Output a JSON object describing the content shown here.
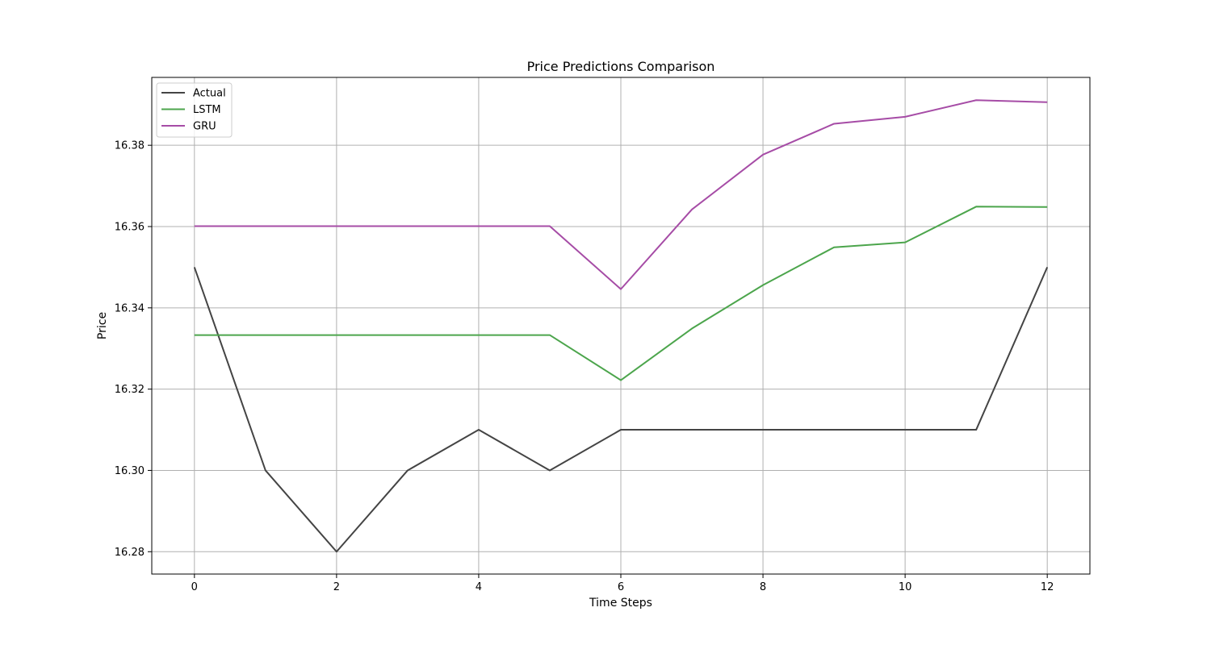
{
  "chart_data": {
    "type": "line",
    "title": "Price Predictions Comparison",
    "xlabel": "Time Steps",
    "ylabel": "Price",
    "x": [
      0,
      1,
      2,
      3,
      4,
      5,
      6,
      7,
      8,
      9,
      10,
      11,
      12
    ],
    "xlim": [
      -0.6,
      12.6
    ],
    "ylim": [
      16.2745,
      16.3967
    ],
    "xticks": [
      "0",
      "2",
      "4",
      "6",
      "8",
      "10",
      "12"
    ],
    "yticks": [
      "16.28",
      "16.30",
      "16.32",
      "16.34",
      "16.36",
      "16.38"
    ],
    "grid": true,
    "legend_position": "top-left",
    "series": [
      {
        "name": "Actual",
        "color": "#444444",
        "values": [
          16.35,
          16.3,
          16.28,
          16.3,
          16.31,
          16.3,
          16.31,
          16.31,
          16.31,
          16.31,
          16.31,
          16.31,
          16.35
        ]
      },
      {
        "name": "LSTM",
        "color": "#4ca54c",
        "values": [
          16.3333,
          16.3333,
          16.3333,
          16.3333,
          16.3333,
          16.3333,
          16.3222,
          16.3349,
          16.3456,
          16.3549,
          16.3561,
          16.3649,
          16.3648
        ]
      },
      {
        "name": "GRU",
        "color": "#a64ca6",
        "values": [
          16.3601,
          16.3601,
          16.3601,
          16.3601,
          16.3601,
          16.3601,
          16.3446,
          16.3642,
          16.3777,
          16.3853,
          16.387,
          16.3911,
          16.3906
        ]
      }
    ]
  }
}
